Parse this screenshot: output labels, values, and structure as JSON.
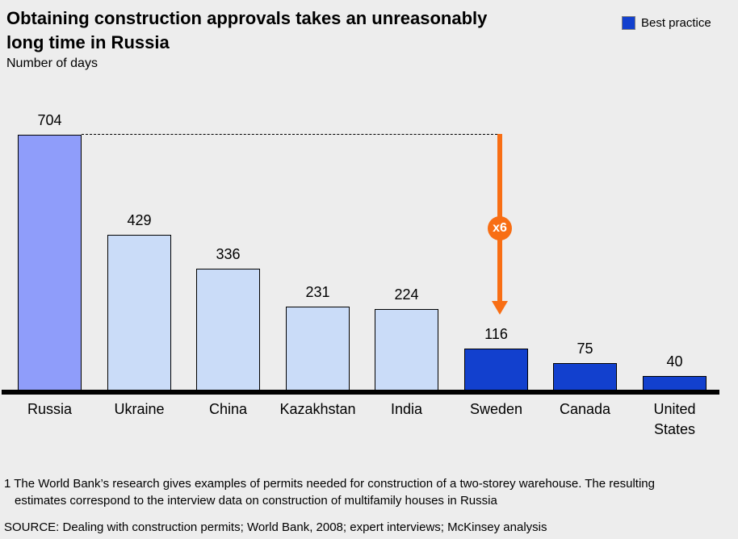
{
  "header": {
    "title_line1": "Obtaining construction approvals takes an unreasonably",
    "title_line2": "long time in Russia",
    "subtitle": "Number of days"
  },
  "chart_data": {
    "type": "bar",
    "title": "Obtaining construction approvals takes an unreasonably long time in Russia",
    "ylabel": "Number of days",
    "categories": [
      "Russia",
      "Ukraine",
      "China",
      "Kazakhstan",
      "India",
      "Sweden",
      "Canada",
      "United States"
    ],
    "values": [
      704,
      429,
      336,
      231,
      224,
      116,
      75,
      40
    ],
    "roles": [
      "russia",
      "comparison",
      "comparison",
      "comparison",
      "comparison",
      "best",
      "best",
      "best"
    ],
    "legend": {
      "label": "Best practice",
      "position": "top-right"
    },
    "annotation": {
      "label": "x6",
      "from_value": 704,
      "points_to_category": "Sweden"
    },
    "ylim": [
      0,
      750
    ],
    "grid": false
  },
  "footnote": "1 The World Bank’s research gives examples of permits needed for construction of a two-storey warehouse. The resulting estimates correspond to the interview data on construction of multifamily houses in Russia",
  "source": "SOURCE: Dealing with construction permits; World Bank, 2008; expert interviews; McKinsey analysis",
  "colors": {
    "background": "#EDEDED",
    "bar_russia": "#8F9DFA",
    "bar_comparison": "#CADCF8",
    "bar_best": "#1240CE",
    "arrow": "#F86E14",
    "badge_text": "#FFFFFF"
  }
}
